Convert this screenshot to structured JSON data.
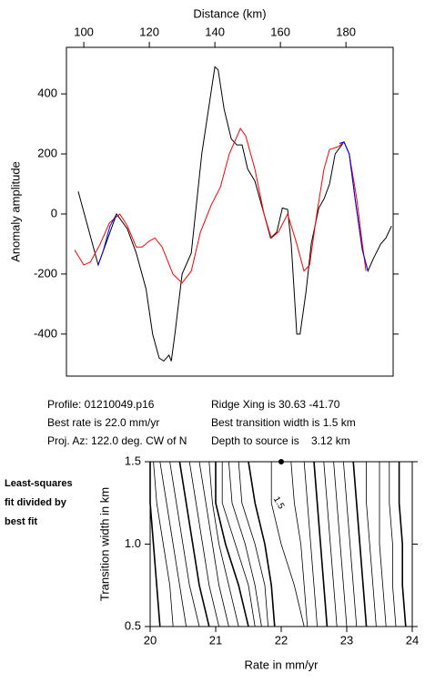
{
  "chart_data": [
    {
      "type": "line",
      "title": "Distance (km)",
      "ylabel": "Anomaly amplitude",
      "xlim": [
        94.7,
        194.4
      ],
      "xticks": [
        100,
        120,
        140,
        160,
        180
      ],
      "ylim": [
        -540,
        555
      ],
      "yticks": [
        400,
        200,
        0,
        -200,
        -400
      ],
      "series": [
        {
          "color": "#000000",
          "x": [
            98.3,
            104.4,
            110,
            113.3,
            116,
            119,
            121,
            123,
            124.4,
            126,
            126.7,
            127.8,
            130,
            132.8,
            136,
            140,
            141,
            142.8,
            145,
            146.7,
            148.3,
            150,
            152.2,
            155,
            157,
            158.9,
            160.6,
            162.2,
            163.3,
            165,
            166,
            167.8,
            169.4,
            171.7,
            173.3,
            175,
            176.7,
            179.4,
            181,
            182.8,
            185,
            186.7,
            188.3,
            190.6,
            192.2,
            193.9
          ],
          "values": [
            75,
            -170,
            0,
            -50,
            -130,
            -250,
            -400,
            -480,
            -490,
            -470,
            -490,
            -400,
            -200,
            -130,
            200,
            490,
            480,
            350,
            250,
            230,
            230,
            150,
            110,
            0,
            -80,
            -60,
            20,
            15,
            -100,
            -400,
            -400,
            -260,
            -100,
            20,
            50,
            100,
            200,
            240,
            200,
            50,
            -120,
            -190,
            -150,
            -100,
            -80,
            -40
          ]
        },
        {
          "color": "#ff0000",
          "x": [
            97.2,
            100,
            102,
            105,
            107.8,
            111,
            113.3,
            116,
            117.8,
            120,
            121.7,
            123.9,
            127.2,
            130,
            132.8,
            135.6,
            138.9,
            141.7,
            144.4,
            147.8,
            149.4,
            152.2,
            155,
            157.2,
            159.4,
            162.2,
            165,
            167.2,
            168.9,
            171.1,
            173.3,
            175,
            177.8,
            179.4,
            181,
            183.3,
            185,
            186.1
          ],
          "values": [
            -120,
            -170,
            -160,
            -100,
            -30,
            0,
            -40,
            -110,
            -110,
            -90,
            -80,
            -110,
            -200,
            -230,
            -190,
            -60,
            30,
            90,
            200,
            285,
            260,
            150,
            0,
            -80,
            -60,
            0,
            -100,
            -190,
            -170,
            0,
            150,
            215,
            225,
            240,
            200,
            50,
            -100,
            -190
          ]
        },
        {
          "color": "#0000ff",
          "x": [
            104.4,
            106,
            108,
            110
          ],
          "values": [
            -170,
            -120,
            -40,
            0
          ]
        },
        {
          "color": "#0000ff",
          "x": [
            178,
            179.4,
            181,
            182.8,
            185,
            186.7
          ],
          "values": [
            235,
            240,
            200,
            50,
            -120,
            -190
          ]
        }
      ]
    },
    {
      "type": "contour",
      "xlabel": "Rate in mm/yr",
      "ylabel": "Transition width in km",
      "xlim": [
        20,
        24
      ],
      "xticks": [
        20,
        21,
        22,
        23,
        24
      ],
      "ylim": [
        0.5,
        1.5
      ],
      "yticks": [
        0.5,
        {
          "value": 1,
          "label": "1.0"
        },
        1.5
      ],
      "contour_y": [
        0.5,
        0.75,
        1,
        1.25,
        1.5
      ],
      "contours": [
        {
          "x": [
            20.15,
            20.1,
            20.05,
            20.0,
            20.0
          ]
        },
        {
          "x": [
            20.35,
            20.3,
            20.2,
            20.1,
            20.05
          ]
        },
        {
          "x": [
            20.55,
            20.45,
            20.35,
            20.25,
            20.15
          ]
        },
        {
          "x": [
            20.75,
            20.6,
            20.5,
            20.4,
            20.3
          ]
        },
        {
          "x": [
            20.9,
            20.75,
            20.65,
            20.55,
            20.45
          ]
        },
        {
          "x": [
            21.05,
            20.9,
            20.8,
            20.7,
            20.6
          ]
        },
        {
          "x": [
            21.2,
            21.05,
            20.95,
            20.85,
            20.75
          ]
        },
        {
          "x": [
            21.35,
            21.2,
            21.05,
            20.95,
            20.9
          ]
        },
        {
          "x": [
            21.5,
            21.35,
            21.15,
            21.0,
            21.0
          ]
        },
        {
          "x": [
            21.6,
            21.5,
            21.3,
            21.1,
            21.1
          ]
        },
        {
          "x": [
            21.7,
            21.6,
            21.45,
            21.25,
            21.2
          ]
        },
        {
          "x": [
            21.8,
            21.75,
            21.6,
            21.4,
            21.35
          ]
        },
        {
          "x": [
            21.9,
            21.85,
            21.75,
            21.6,
            21.5
          ]
        },
        {
          "x": [
            22.35,
            22.2,
            22.0,
            21.85,
            21.85
          ],
          "level": 1.5
        },
        {
          "x": [
            22.4,
            22.35,
            22.3,
            22.2,
            22.15
          ]
        },
        {
          "x": [
            22.55,
            22.5,
            22.45,
            22.4,
            22.35
          ]
        },
        {
          "x": [
            22.7,
            22.65,
            22.6,
            22.55,
            22.5
          ]
        },
        {
          "x": [
            22.85,
            22.8,
            22.75,
            22.7,
            22.65
          ]
        },
        {
          "x": [
            23.0,
            22.95,
            22.9,
            22.85,
            22.8
          ]
        },
        {
          "x": [
            23.15,
            23.1,
            23.05,
            23.0,
            22.95
          ]
        },
        {
          "x": [
            23.3,
            23.25,
            23.2,
            23.15,
            23.1
          ]
        },
        {
          "x": [
            23.45,
            23.4,
            23.35,
            23.3,
            23.3
          ]
        },
        {
          "x": [
            23.6,
            23.55,
            23.5,
            23.5,
            23.5
          ]
        },
        {
          "x": [
            23.75,
            23.7,
            23.7,
            23.65,
            23.65
          ]
        },
        {
          "x": [
            23.9,
            23.85,
            23.85,
            23.8,
            23.8
          ]
        }
      ],
      "best_fit": {
        "x": 22.0,
        "y": 1.5
      }
    }
  ],
  "info": [
    [
      "Profile: 01210049.p16",
      "Ridge Xing is 30.63 -41.70"
    ],
    [
      "Best rate is 22.0 mm/yr",
      "Best transition width is 1.5 km"
    ],
    [
      "Proj. Az: 122.0 deg. CW of N",
      "Depth to source is    3.12 km"
    ]
  ],
  "side_note": [
    "Least-squares",
    "fit divided by",
    "best fit"
  ]
}
